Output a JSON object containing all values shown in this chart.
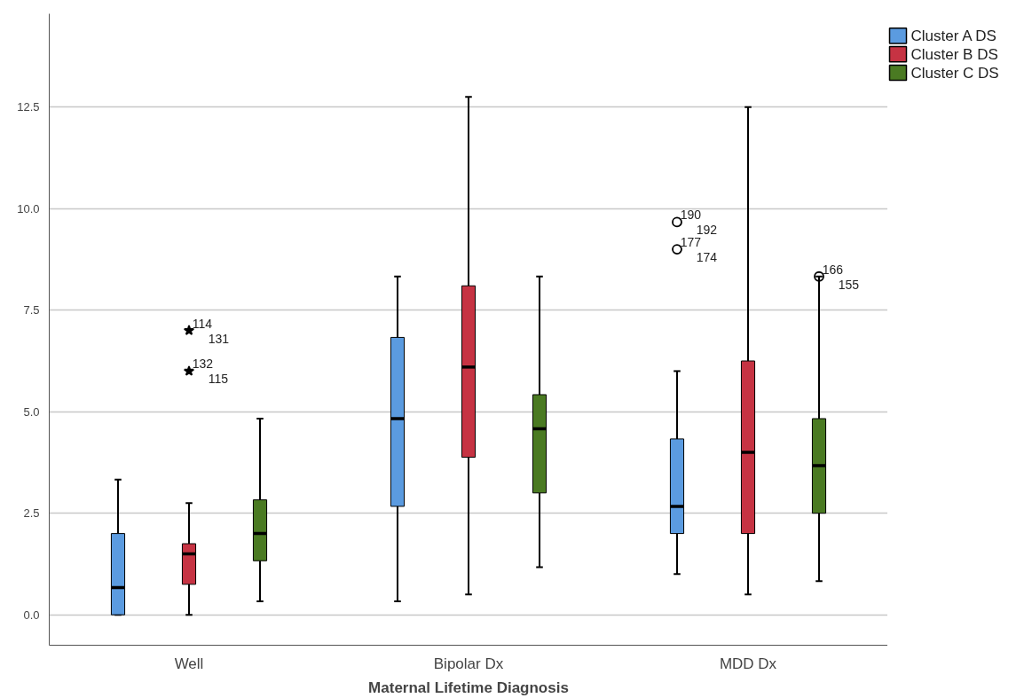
{
  "chart_data": {
    "type": "box",
    "xlabel": "Maternal Lifetime Diagnosis",
    "categories": [
      "Well",
      "Bipolar Dx",
      "MDD Dx"
    ],
    "ylim": [
      -0.75,
      14.8
    ],
    "yticks": [
      {
        "value": 0,
        "label": "0.0"
      },
      2.5,
      {
        "value": 5,
        "label": "5.0"
      },
      7.5,
      {
        "value": 10,
        "label": "10.0"
      },
      12.5
    ],
    "grid": "y",
    "legend": "top right",
    "series": [
      {
        "name": "Cluster A DS",
        "color": "#5b9be0",
        "boxes": [
          {
            "low": 0,
            "q1": 0,
            "median": 0.67,
            "q3": 2.0,
            "high": 3.33
          },
          {
            "low": 0.33,
            "q1": 2.67,
            "median": 4.83,
            "q3": 6.83,
            "high": 8.33
          },
          {
            "low": 1.0,
            "q1": 2.0,
            "median": 2.67,
            "q3": 4.33,
            "high": 6.0,
            "outliers": [
              9.67,
              9.0
            ]
          }
        ]
      },
      {
        "name": "Cluster B DS",
        "color": "#c63343",
        "boxes": [
          {
            "low": 0,
            "q1": 0.75,
            "median": 1.5,
            "q3": 1.75,
            "high": 2.75,
            "outliers": [
              7.0,
              6.0
            ]
          },
          {
            "low": 0.5,
            "q1": 3.88,
            "median": 6.1,
            "q3": 8.1,
            "high": 12.75
          },
          {
            "low": 0.5,
            "q1": 2.0,
            "median": 4.0,
            "q3": 6.25,
            "high": 12.5
          }
        ]
      },
      {
        "name": "Cluster C DS",
        "color": "#4a7a22",
        "boxes": [
          {
            "low": 0.33,
            "q1": 1.33,
            "median": 2.0,
            "q3": 2.83,
            "high": 4.83
          },
          {
            "low": 1.17,
            "q1": 3.0,
            "median": 4.58,
            "q3": 5.42,
            "high": 8.33
          },
          {
            "low": 0.83,
            "q1": 2.5,
            "median": 3.67,
            "q3": 4.83,
            "high": 8.33,
            "outliers": [
              8.33
            ]
          }
        ]
      }
    ],
    "annotations": [
      "190",
      "192",
      "177",
      "174",
      "114",
      "131",
      "132",
      "115",
      "166",
      "155"
    ]
  }
}
